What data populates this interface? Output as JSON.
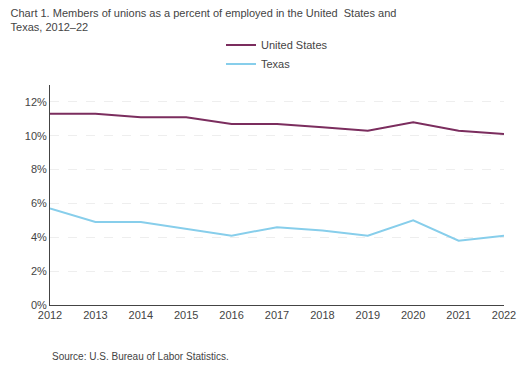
{
  "chart_data": {
    "type": "line",
    "title": [
      "Chart 1. Members of unions as a percent of employed in the United  States and",
      "Texas, 2012–22"
    ],
    "x": [
      2012,
      2013,
      2014,
      2015,
      2016,
      2017,
      2018,
      2019,
      2020,
      2021,
      2022
    ],
    "series": [
      {
        "name": "United States",
        "color": "#7b2d5e",
        "values": [
          11.3,
          11.3,
          11.1,
          11.1,
          10.7,
          10.7,
          10.5,
          10.3,
          10.8,
          10.3,
          10.1
        ]
      },
      {
        "name": "Texas",
        "color": "#87ceeb",
        "values": [
          5.7,
          4.9,
          4.9,
          4.5,
          4.1,
          4.6,
          4.4,
          4.1,
          5.0,
          3.8,
          4.1
        ]
      }
    ],
    "xlim": [
      2012,
      2022
    ],
    "xticks": [
      2012,
      2013,
      2014,
      2015,
      2016,
      2017,
      2018,
      2019,
      2020,
      2021,
      2022
    ],
    "ylim": [
      0,
      13
    ],
    "yticks": [
      {
        "value": 0,
        "label": "0%"
      },
      {
        "value": 2,
        "label": "2%"
      },
      {
        "value": 4,
        "label": "4%"
      },
      {
        "value": 6,
        "label": "6%"
      },
      {
        "value": 8,
        "label": "8%"
      },
      {
        "value": 10,
        "label": "10%"
      },
      {
        "value": 12,
        "label": "12%"
      }
    ],
    "grid": true,
    "legend": "top",
    "annotations": [
      "Source: U.S. Bureau of Labor Statistics."
    ]
  }
}
